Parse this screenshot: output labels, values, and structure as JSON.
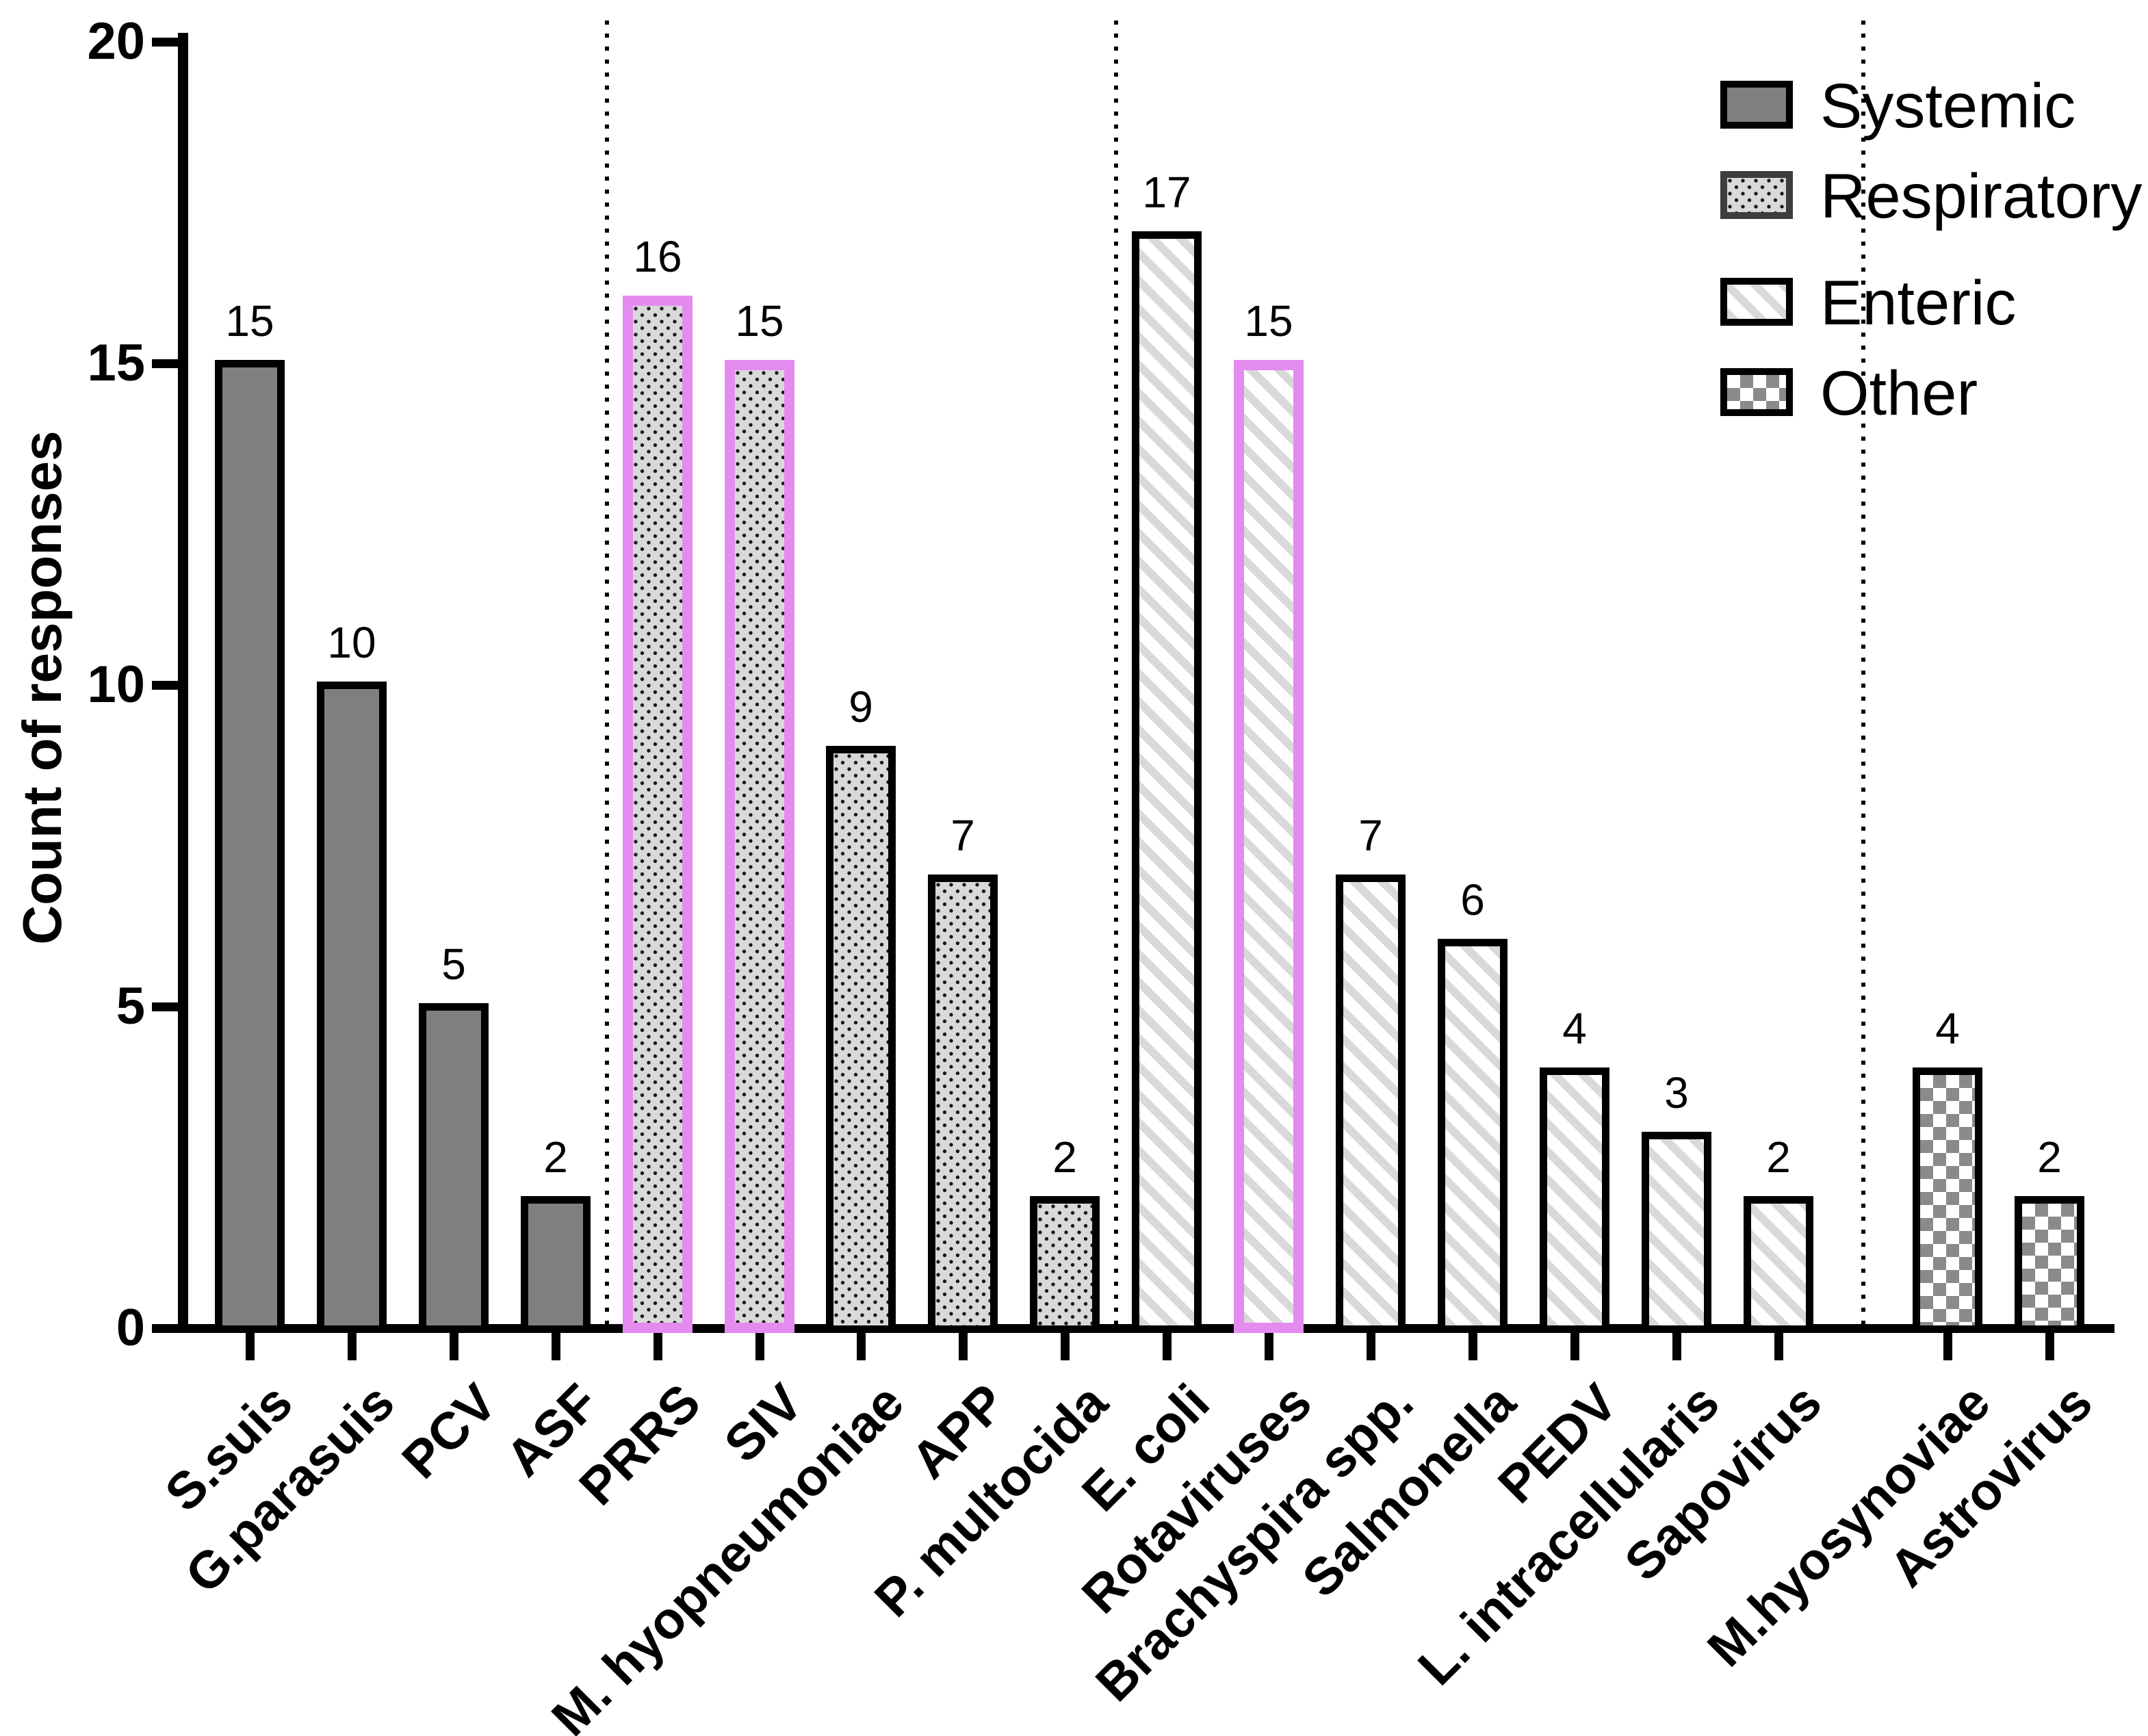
{
  "chart_data": {
    "type": "bar",
    "title": "",
    "xlabel": "",
    "ylabel": "Count of responses",
    "ylim": [
      0,
      20
    ],
    "yticks": [
      "0",
      "5",
      "10",
      "15",
      "20"
    ],
    "grid": false,
    "legend_position": "top-right",
    "legend": [
      {
        "label": "Systemic",
        "pattern": "solid-gray"
      },
      {
        "label": "Respiratory",
        "pattern": "dotted"
      },
      {
        "label": "Enteric",
        "pattern": "diagonal-stripes"
      },
      {
        "label": "Other",
        "pattern": "checkerboard"
      }
    ],
    "categories": [
      "S.suis",
      "G.parasuis",
      "PCV",
      "ASF",
      "PRRS",
      "SIV",
      "M. hyopneumoniae",
      "APP",
      "P. multocida",
      "E. coli",
      "Rotaviruses",
      "Brachyspira spp.",
      "Salmonella",
      "PEDV",
      "L. intracellularis",
      "Sapovirus",
      "M.hyosynoviae",
      "Astrovirus"
    ],
    "values": [
      15,
      10,
      5,
      2,
      16,
      15,
      9,
      7,
      2,
      17,
      15,
      7,
      6,
      4,
      3,
      2,
      4,
      2
    ],
    "bars": [
      {
        "label": "S.suis",
        "value": 15,
        "group": "Systemic",
        "pink_outline": false
      },
      {
        "label": "G.parasuis",
        "value": 10,
        "group": "Systemic",
        "pink_outline": false
      },
      {
        "label": "PCV",
        "value": 5,
        "group": "Systemic",
        "pink_outline": false
      },
      {
        "label": "ASF",
        "value": 2,
        "group": "Systemic",
        "pink_outline": false
      },
      {
        "label": "PRRS",
        "value": 16,
        "group": "Respiratory",
        "pink_outline": true
      },
      {
        "label": "SIV",
        "value": 15,
        "group": "Respiratory",
        "pink_outline": true
      },
      {
        "label": "M. hyopneumoniae",
        "value": 9,
        "group": "Respiratory",
        "pink_outline": false
      },
      {
        "label": "APP",
        "value": 7,
        "group": "Respiratory",
        "pink_outline": false
      },
      {
        "label": "P. multocida",
        "value": 2,
        "group": "Respiratory",
        "pink_outline": false
      },
      {
        "label": "E. coli",
        "value": 17,
        "group": "Enteric",
        "pink_outline": false
      },
      {
        "label": "Rotaviruses",
        "value": 15,
        "group": "Enteric",
        "pink_outline": true
      },
      {
        "label": "Brachyspira spp.",
        "value": 7,
        "group": "Enteric",
        "pink_outline": false
      },
      {
        "label": "Salmonella",
        "value": 6,
        "group": "Enteric",
        "pink_outline": false
      },
      {
        "label": "PEDV",
        "value": 4,
        "group": "Enteric",
        "pink_outline": false
      },
      {
        "label": "L. intracellularis",
        "value": 3,
        "group": "Enteric",
        "pink_outline": false
      },
      {
        "label": "Sapovirus",
        "value": 2,
        "group": "Enteric",
        "pink_outline": false
      },
      {
        "label": "M.hyosynoviae",
        "value": 4,
        "group": "Other",
        "pink_outline": false
      },
      {
        "label": "Astrovirus",
        "value": 2,
        "group": "Other",
        "pink_outline": false
      }
    ],
    "colors": {
      "pink_highlight": "#e48bf0",
      "systemic_gray": "#7f7f7f",
      "pattern_light_gray": "#d9d9d9",
      "checker_gray": "#8a8a8a",
      "axis_black": "#000000"
    }
  }
}
